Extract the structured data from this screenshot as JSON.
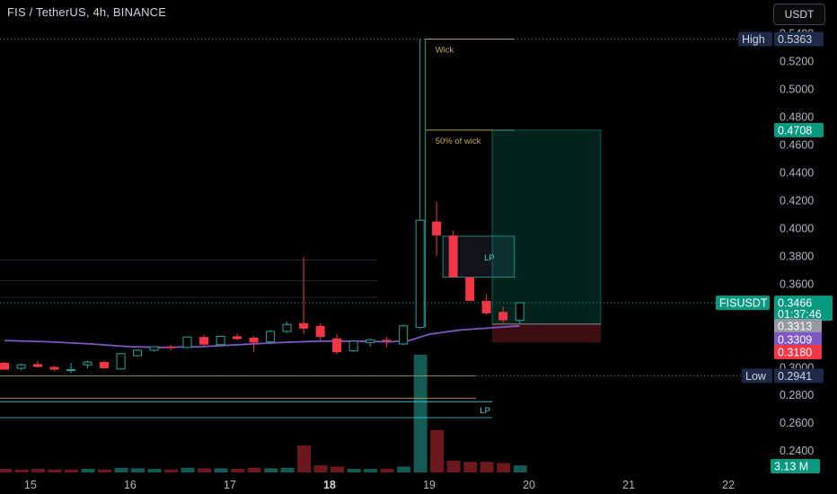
{
  "header": {
    "title": "FIS / TetherUS, 4h, BINANCE",
    "currency": "USDT"
  },
  "colors": {
    "up": "#26a69a",
    "down": "#f23645",
    "ma": "#7e57c2",
    "bg": "#000000",
    "label_blue": "#1e2b48"
  },
  "chart_data": {
    "type": "candlestick",
    "symbol": "FISUSDT",
    "interval": "4h",
    "exchange": "BINANCE",
    "y_axis": {
      "scale": "linear",
      "range": [
        0.222,
        0.545
      ],
      "ticks": [
        "0.5400",
        "0.5200",
        "0.5000",
        "0.4800",
        "0.4600",
        "0.4400",
        "0.4200",
        "0.4000",
        "0.3800",
        "0.3600",
        "0.3400",
        "0.3200",
        "0.3000",
        "0.2800",
        "0.2600",
        "0.2400"
      ]
    },
    "x_axis": {
      "range": [
        14.74,
        22.35
      ],
      "ticks": [
        {
          "label": "15",
          "x": 15
        },
        {
          "label": "16",
          "x": 16
        },
        {
          "label": "17",
          "x": 17
        },
        {
          "label": "18",
          "x": 18,
          "bold": true
        },
        {
          "label": "19",
          "x": 19
        },
        {
          "label": "20",
          "x": 20
        },
        {
          "label": "21",
          "x": 21
        },
        {
          "label": "22",
          "x": 22
        }
      ]
    },
    "candles": [
      {
        "t": 14.74,
        "o": 0.3035,
        "h": 0.304,
        "l": 0.2985,
        "c": 0.2985
      },
      {
        "t": 14.907,
        "o": 0.2995,
        "h": 0.303,
        "l": 0.2982,
        "c": 0.302
      },
      {
        "t": 15.073,
        "o": 0.3025,
        "h": 0.3048,
        "l": 0.3,
        "c": 0.3005
      },
      {
        "t": 15.24,
        "o": 0.3005,
        "h": 0.3012,
        "l": 0.2975,
        "c": 0.2985
      },
      {
        "t": 15.407,
        "o": 0.2985,
        "h": 0.3035,
        "l": 0.296,
        "c": 0.2985
      },
      {
        "t": 15.573,
        "o": 0.302,
        "h": 0.305,
        "l": 0.2995,
        "c": 0.304
      },
      {
        "t": 15.74,
        "o": 0.304,
        "h": 0.305,
        "l": 0.299,
        "c": 0.2995
      },
      {
        "t": 15.907,
        "o": 0.299,
        "h": 0.3105,
        "l": 0.2985,
        "c": 0.31
      },
      {
        "t": 16.073,
        "o": 0.3085,
        "h": 0.313,
        "l": 0.308,
        "c": 0.3125
      },
      {
        "t": 16.24,
        "o": 0.3125,
        "h": 0.315,
        "l": 0.3115,
        "c": 0.315
      },
      {
        "t": 16.407,
        "o": 0.315,
        "h": 0.3165,
        "l": 0.3125,
        "c": 0.314
      },
      {
        "t": 16.573,
        "o": 0.3145,
        "h": 0.3225,
        "l": 0.314,
        "c": 0.322
      },
      {
        "t": 16.74,
        "o": 0.322,
        "h": 0.3235,
        "l": 0.3155,
        "c": 0.3165
      },
      {
        "t": 16.907,
        "o": 0.3165,
        "h": 0.323,
        "l": 0.3155,
        "c": 0.3225
      },
      {
        "t": 17.073,
        "o": 0.3225,
        "h": 0.3245,
        "l": 0.3195,
        "c": 0.3205
      },
      {
        "t": 17.24,
        "o": 0.3215,
        "h": 0.3225,
        "l": 0.3115,
        "c": 0.318
      },
      {
        "t": 17.407,
        "o": 0.3185,
        "h": 0.327,
        "l": 0.318,
        "c": 0.326
      },
      {
        "t": 17.573,
        "o": 0.326,
        "h": 0.333,
        "l": 0.325,
        "c": 0.331
      },
      {
        "t": 17.74,
        "o": 0.332,
        "h": 0.3795,
        "l": 0.324,
        "c": 0.328
      },
      {
        "t": 17.907,
        "o": 0.33,
        "h": 0.332,
        "l": 0.32,
        "c": 0.322
      },
      {
        "t": 18.073,
        "o": 0.321,
        "h": 0.324,
        "l": 0.3095,
        "c": 0.311
      },
      {
        "t": 18.24,
        "o": 0.312,
        "h": 0.3195,
        "l": 0.311,
        "c": 0.319
      },
      {
        "t": 18.407,
        "o": 0.318,
        "h": 0.321,
        "l": 0.315,
        "c": 0.32
      },
      {
        "t": 18.573,
        "o": 0.32,
        "h": 0.322,
        "l": 0.3145,
        "c": 0.319
      },
      {
        "t": 18.74,
        "o": 0.317,
        "h": 0.331,
        "l": 0.316,
        "c": 0.33
      },
      {
        "t": 18.907,
        "o": 0.329,
        "h": 0.5363,
        "l": 0.328,
        "c": 0.406
      },
      {
        "t": 19.073,
        "o": 0.405,
        "h": 0.419,
        "l": 0.38,
        "c": 0.395
      },
      {
        "t": 19.24,
        "o": 0.395,
        "h": 0.3985,
        "l": 0.365,
        "c": 0.365
      },
      {
        "t": 19.407,
        "o": 0.365,
        "h": 0.365,
        "l": 0.348,
        "c": 0.348
      },
      {
        "t": 19.573,
        "o": 0.348,
        "h": 0.353,
        "l": 0.338,
        "c": 0.339
      },
      {
        "t": 19.74,
        "o": 0.34,
        "h": 0.344,
        "l": 0.332,
        "c": 0.334
      },
      {
        "t": 19.907,
        "o": 0.334,
        "h": 0.347,
        "l": 0.332,
        "c": 0.3466
      }
    ],
    "volume": [
      {
        "t": 14.74,
        "v": 0.03,
        "dir": "down"
      },
      {
        "t": 14.907,
        "v": 0.025,
        "dir": "down"
      },
      {
        "t": 15.073,
        "v": 0.03,
        "dir": "down"
      },
      {
        "t": 15.24,
        "v": 0.025,
        "dir": "down"
      },
      {
        "t": 15.407,
        "v": 0.025,
        "dir": "down"
      },
      {
        "t": 15.573,
        "v": 0.03,
        "dir": "up"
      },
      {
        "t": 15.74,
        "v": 0.025,
        "dir": "down"
      },
      {
        "t": 15.907,
        "v": 0.04,
        "dir": "up"
      },
      {
        "t": 16.073,
        "v": 0.035,
        "dir": "up"
      },
      {
        "t": 16.24,
        "v": 0.03,
        "dir": "up"
      },
      {
        "t": 16.407,
        "v": 0.025,
        "dir": "down"
      },
      {
        "t": 16.573,
        "v": 0.04,
        "dir": "up"
      },
      {
        "t": 16.74,
        "v": 0.035,
        "dir": "down"
      },
      {
        "t": 16.907,
        "v": 0.035,
        "dir": "up"
      },
      {
        "t": 17.073,
        "v": 0.03,
        "dir": "down"
      },
      {
        "t": 17.24,
        "v": 0.04,
        "dir": "down"
      },
      {
        "t": 17.407,
        "v": 0.035,
        "dir": "up"
      },
      {
        "t": 17.573,
        "v": 0.04,
        "dir": "up"
      },
      {
        "t": 17.74,
        "v": 0.23,
        "dir": "down"
      },
      {
        "t": 17.907,
        "v": 0.06,
        "dir": "down"
      },
      {
        "t": 18.073,
        "v": 0.05,
        "dir": "down"
      },
      {
        "t": 18.24,
        "v": 0.03,
        "dir": "up"
      },
      {
        "t": 18.407,
        "v": 0.03,
        "dir": "up"
      },
      {
        "t": 18.573,
        "v": 0.03,
        "dir": "down"
      },
      {
        "t": 18.74,
        "v": 0.05,
        "dir": "up"
      },
      {
        "t": 18.907,
        "v": 1.0,
        "dir": "up"
      },
      {
        "t": 19.073,
        "v": 0.36,
        "dir": "down"
      },
      {
        "t": 19.24,
        "v": 0.1,
        "dir": "down"
      },
      {
        "t": 19.407,
        "v": 0.09,
        "dir": "down"
      },
      {
        "t": 19.573,
        "v": 0.09,
        "dir": "down"
      },
      {
        "t": 19.74,
        "v": 0.08,
        "dir": "down"
      },
      {
        "t": 19.907,
        "v": 0.06,
        "dir": "up"
      }
    ],
    "moving_average": [
      {
        "t": 14.74,
        "v": 0.3195
      },
      {
        "t": 15.2,
        "v": 0.3185
      },
      {
        "t": 15.6,
        "v": 0.317
      },
      {
        "t": 16.0,
        "v": 0.315
      },
      {
        "t": 16.3,
        "v": 0.3145
      },
      {
        "t": 16.7,
        "v": 0.315
      },
      {
        "t": 17.1,
        "v": 0.3165
      },
      {
        "t": 17.5,
        "v": 0.318
      },
      {
        "t": 17.9,
        "v": 0.319
      },
      {
        "t": 18.3,
        "v": 0.319
      },
      {
        "t": 18.6,
        "v": 0.3185
      },
      {
        "t": 18.8,
        "v": 0.3195
      },
      {
        "t": 19.0,
        "v": 0.324
      },
      {
        "t": 19.3,
        "v": 0.327
      },
      {
        "t": 19.6,
        "v": 0.3285
      },
      {
        "t": 19.907,
        "v": 0.33
      }
    ],
    "price_labels": {
      "high": {
        "text": "High",
        "value": "0.5363"
      },
      "low": {
        "text": "Low",
        "value": "0.2941"
      },
      "target": "0.4708",
      "symbol": "FISUSDT",
      "last": "0.3466",
      "countdown": "01:37:46",
      "level_gray": "0.3313",
      "ma": "0.3309",
      "stop": "0.3180",
      "volume": "3.13 M"
    },
    "annotations": {
      "wick": "Wick",
      "half_wick": "50% of wick",
      "lp_upper": "LP",
      "lp_lower": "LP"
    },
    "levels": {
      "high": 0.5363,
      "half_wick": 0.4708,
      "low": 0.2941,
      "last": 0.3466,
      "upper_lp_top": 0.3945,
      "upper_lp_bottom": 0.365,
      "position_target": 0.4708,
      "position_entry": 0.3313,
      "position_stop": 0.318,
      "lower_lines": [
        0.278,
        0.2755,
        0.264
      ]
    },
    "grid": false
  }
}
